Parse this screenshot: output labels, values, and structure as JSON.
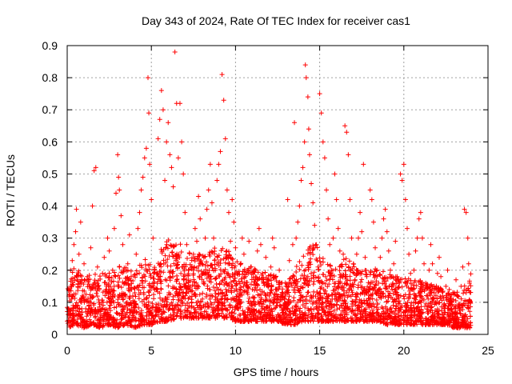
{
  "chart_data": {
    "type": "scatter",
    "title": "Day 343 of 2024, Rate Of TEC Index for receiver cas1",
    "xlabel": "GPS time / hours",
    "ylabel": "ROTI / TECUs",
    "xlim": [
      0,
      25
    ],
    "ylim": [
      0,
      0.9
    ],
    "xticks": [
      0,
      5,
      10,
      15,
      20,
      25
    ],
    "yticks": [
      0,
      0.1,
      0.2,
      0.3,
      0.4,
      0.5,
      0.6,
      0.7,
      0.8,
      0.9
    ],
    "xtick_labels": [
      "0",
      "5",
      "10",
      "15",
      "20",
      "25"
    ],
    "ytick_labels": [
      "0",
      "0.1",
      "0.2",
      "0.3",
      "0.4",
      "0.5",
      "0.6",
      "0.7",
      "0.8",
      "0.9"
    ],
    "grid": true,
    "marker": "plus",
    "color": "#ff0000",
    "series": [
      {
        "points": [
          [
            0.05,
            0.08
          ],
          [
            0.1,
            0.14
          ],
          [
            0.15,
            0.06
          ],
          [
            0.2,
            0.2
          ],
          [
            0.25,
            0.11
          ],
          [
            0.3,
            0.23
          ],
          [
            0.35,
            0.09
          ],
          [
            0.4,
            0.28
          ],
          [
            0.5,
            0.32
          ],
          [
            0.55,
            0.39
          ],
          [
            0.6,
            0.17
          ],
          [
            0.7,
            0.25
          ],
          [
            0.8,
            0.35
          ],
          [
            0.9,
            0.12
          ],
          [
            1.0,
            0.22
          ],
          [
            1.1,
            0.08
          ],
          [
            1.2,
            0.18
          ],
          [
            1.3,
            0.15
          ],
          [
            1.4,
            0.27
          ],
          [
            1.5,
            0.4
          ],
          [
            1.6,
            0.51
          ],
          [
            1.7,
            0.52
          ],
          [
            1.8,
            0.21
          ],
          [
            1.9,
            0.1
          ],
          [
            2.0,
            0.06
          ],
          [
            2.1,
            0.19
          ],
          [
            2.2,
            0.24
          ],
          [
            2.3,
            0.14
          ],
          [
            2.4,
            0.3
          ],
          [
            2.5,
            0.26
          ],
          [
            2.6,
            0.11
          ],
          [
            2.7,
            0.2
          ],
          [
            2.8,
            0.33
          ],
          [
            2.9,
            0.44
          ],
          [
            3.0,
            0.56
          ],
          [
            3.05,
            0.49
          ],
          [
            3.1,
            0.45
          ],
          [
            3.2,
            0.37
          ],
          [
            3.3,
            0.28
          ],
          [
            3.4,
            0.16
          ],
          [
            3.5,
            0.09
          ],
          [
            3.6,
            0.22
          ],
          [
            3.7,
            0.31
          ],
          [
            3.8,
            0.18
          ],
          [
            3.9,
            0.12
          ],
          [
            4.0,
            0.07
          ],
          [
            4.1,
            0.25
          ],
          [
            4.2,
            0.33
          ],
          [
            4.3,
            0.38
          ],
          [
            4.4,
            0.45
          ],
          [
            4.5,
            0.49
          ],
          [
            4.6,
            0.55
          ],
          [
            4.7,
            0.58
          ],
          [
            4.8,
            0.8
          ],
          [
            4.85,
            0.69
          ],
          [
            4.9,
            0.53
          ],
          [
            5.0,
            0.42
          ],
          [
            5.1,
            0.3
          ],
          [
            5.2,
            0.2
          ],
          [
            5.3,
            0.14
          ],
          [
            5.4,
            0.61
          ],
          [
            5.5,
            0.67
          ],
          [
            5.6,
            0.76
          ],
          [
            5.7,
            0.7
          ],
          [
            5.8,
            0.48
          ],
          [
            5.9,
            0.6
          ],
          [
            6.0,
            0.66
          ],
          [
            6.1,
            0.56
          ],
          [
            6.2,
            0.52
          ],
          [
            6.3,
            0.46
          ],
          [
            6.4,
            0.88
          ],
          [
            6.5,
            0.72
          ],
          [
            6.6,
            0.55
          ],
          [
            6.7,
            0.72
          ],
          [
            6.8,
            0.6
          ],
          [
            6.9,
            0.5
          ],
          [
            7.0,
            0.38
          ],
          [
            7.1,
            0.28
          ],
          [
            7.2,
            0.2
          ],
          [
            7.3,
            0.14
          ],
          [
            7.4,
            0.1
          ],
          [
            7.5,
            0.25
          ],
          [
            7.6,
            0.33
          ],
          [
            7.7,
            0.29
          ],
          [
            7.8,
            0.43
          ],
          [
            7.9,
            0.36
          ],
          [
            8.0,
            0.22
          ],
          [
            8.1,
            0.16
          ],
          [
            8.2,
            0.3
          ],
          [
            8.3,
            0.39
          ],
          [
            8.4,
            0.45
          ],
          [
            8.5,
            0.53
          ],
          [
            8.6,
            0.41
          ],
          [
            8.7,
            0.3
          ],
          [
            8.8,
            0.2
          ],
          [
            8.9,
            0.48
          ],
          [
            9.0,
            0.53
          ],
          [
            9.1,
            0.57
          ],
          [
            9.2,
            0.81
          ],
          [
            9.3,
            0.73
          ],
          [
            9.4,
            0.61
          ],
          [
            9.5,
            0.45
          ],
          [
            9.6,
            0.38
          ],
          [
            9.7,
            0.29
          ],
          [
            9.8,
            0.42
          ],
          [
            9.9,
            0.35
          ],
          [
            10.0,
            0.27
          ],
          [
            10.1,
            0.19
          ],
          [
            10.2,
            0.12
          ],
          [
            10.3,
            0.22
          ],
          [
            10.4,
            0.3
          ],
          [
            10.5,
            0.25
          ],
          [
            10.6,
            0.18
          ],
          [
            10.7,
            0.15
          ],
          [
            10.8,
            0.29
          ],
          [
            10.9,
            0.21
          ],
          [
            11.0,
            0.14
          ],
          [
            11.1,
            0.1
          ],
          [
            11.2,
            0.2
          ],
          [
            11.3,
            0.26
          ],
          [
            11.4,
            0.33
          ],
          [
            11.5,
            0.28
          ],
          [
            11.6,
            0.19
          ],
          [
            11.7,
            0.13
          ],
          [
            11.8,
            0.24
          ],
          [
            11.9,
            0.17
          ],
          [
            12.0,
            0.12
          ],
          [
            12.1,
            0.21
          ],
          [
            12.2,
            0.3
          ],
          [
            12.3,
            0.27
          ],
          [
            12.4,
            0.18
          ],
          [
            12.5,
            0.1
          ],
          [
            12.6,
            0.2
          ],
          [
            12.7,
            0.16
          ],
          [
            12.8,
            0.12
          ],
          [
            12.9,
            0.08
          ],
          [
            13.0,
            0.15
          ],
          [
            13.1,
            0.42
          ],
          [
            13.2,
            0.23
          ],
          [
            13.3,
            0.16
          ],
          [
            13.4,
            0.28
          ],
          [
            13.5,
            0.66
          ],
          [
            13.6,
            0.3
          ],
          [
            13.7,
            0.35
          ],
          [
            13.8,
            0.4
          ],
          [
            13.9,
            0.48
          ],
          [
            14.0,
            0.52
          ],
          [
            14.1,
            0.6
          ],
          [
            14.15,
            0.84
          ],
          [
            14.2,
            0.8
          ],
          [
            14.3,
            0.74
          ],
          [
            14.35,
            0.64
          ],
          [
            14.4,
            0.56
          ],
          [
            14.5,
            0.47
          ],
          [
            14.6,
            0.41
          ],
          [
            14.7,
            0.34
          ],
          [
            14.8,
            0.28
          ],
          [
            14.9,
            0.21
          ],
          [
            15.0,
            0.75
          ],
          [
            15.1,
            0.69
          ],
          [
            15.2,
            0.6
          ],
          [
            15.3,
            0.55
          ],
          [
            15.4,
            0.45
          ],
          [
            15.5,
            0.36
          ],
          [
            15.6,
            0.28
          ],
          [
            15.7,
            0.2
          ],
          [
            15.8,
            0.3
          ],
          [
            15.9,
            0.5
          ],
          [
            16.0,
            0.42
          ],
          [
            16.1,
            0.33
          ],
          [
            16.2,
            0.26
          ],
          [
            16.3,
            0.18
          ],
          [
            16.4,
            0.25
          ],
          [
            16.5,
            0.65
          ],
          [
            16.6,
            0.63
          ],
          [
            16.7,
            0.56
          ],
          [
            16.8,
            0.42
          ],
          [
            16.9,
            0.3
          ],
          [
            17.0,
            0.22
          ],
          [
            17.1,
            0.17
          ],
          [
            17.2,
            0.25
          ],
          [
            17.3,
            0.3
          ],
          [
            17.4,
            0.38
          ],
          [
            17.5,
            0.32
          ],
          [
            17.6,
            0.53
          ],
          [
            17.7,
            0.24
          ],
          [
            17.8,
            0.18
          ],
          [
            17.9,
            0.14
          ],
          [
            18.0,
            0.45
          ],
          [
            18.1,
            0.42
          ],
          [
            18.2,
            0.35
          ],
          [
            18.3,
            0.27
          ],
          [
            18.4,
            0.2
          ],
          [
            18.5,
            0.16
          ],
          [
            18.6,
            0.24
          ],
          [
            18.7,
            0.3
          ],
          [
            18.8,
            0.36
          ],
          [
            18.9,
            0.39
          ],
          [
            19.0,
            0.32
          ],
          [
            19.1,
            0.26
          ],
          [
            19.2,
            0.2
          ],
          [
            19.3,
            0.14
          ],
          [
            19.4,
            0.22
          ],
          [
            19.5,
            0.29
          ],
          [
            19.6,
            0.18
          ],
          [
            19.7,
            0.12
          ],
          [
            19.8,
            0.5
          ],
          [
            19.9,
            0.48
          ],
          [
            20.0,
            0.53
          ],
          [
            20.1,
            0.42
          ],
          [
            20.2,
            0.33
          ],
          [
            20.3,
            0.25
          ],
          [
            20.4,
            0.19
          ],
          [
            20.5,
            0.14
          ],
          [
            20.6,
            0.2
          ],
          [
            20.7,
            0.26
          ],
          [
            20.8,
            0.3
          ],
          [
            20.9,
            0.36
          ],
          [
            21.0,
            0.38
          ],
          [
            21.1,
            0.3
          ],
          [
            21.2,
            0.22
          ],
          [
            21.3,
            0.16
          ],
          [
            21.4,
            0.12
          ],
          [
            21.5,
            0.2
          ],
          [
            21.6,
            0.28
          ],
          [
            21.7,
            0.22
          ],
          [
            21.8,
            0.15
          ],
          [
            21.9,
            0.1
          ],
          [
            22.0,
            0.19
          ],
          [
            22.1,
            0.24
          ],
          [
            22.2,
            0.18
          ],
          [
            22.3,
            0.12
          ],
          [
            22.4,
            0.08
          ],
          [
            22.5,
            0.15
          ],
          [
            22.6,
            0.2
          ],
          [
            22.7,
            0.14
          ],
          [
            22.8,
            0.1
          ],
          [
            22.9,
            0.07
          ],
          [
            23.0,
            0.13
          ],
          [
            23.1,
            0.17
          ],
          [
            23.2,
            0.12
          ],
          [
            23.3,
            0.08
          ],
          [
            23.4,
            0.15
          ],
          [
            23.5,
            0.21
          ],
          [
            23.6,
            0.39
          ],
          [
            23.7,
            0.38
          ],
          [
            23.8,
            0.3
          ],
          [
            23.85,
            0.22
          ],
          [
            23.9,
            0.16
          ],
          [
            23.95,
            0.1
          ]
        ]
      }
    ],
    "background_band": {
      "x": [
        0,
        0.5,
        1,
        1.5,
        2,
        2.5,
        3,
        3.5,
        4,
        4.5,
        5,
        5.5,
        6,
        6.5,
        7,
        7.5,
        8,
        8.5,
        9,
        9.5,
        10,
        10.5,
        11,
        11.5,
        12,
        12.5,
        13,
        13.5,
        14,
        14.5,
        15,
        15.5,
        16,
        16.5,
        17,
        17.5,
        18,
        18.5,
        19,
        19.5,
        20,
        20.5,
        21,
        21.5,
        22,
        22.5,
        23,
        23.5,
        24
      ],
      "low": [
        0.02,
        0.03,
        0.02,
        0.03,
        0.02,
        0.03,
        0.02,
        0.03,
        0.02,
        0.03,
        0.03,
        0.04,
        0.04,
        0.05,
        0.05,
        0.05,
        0.05,
        0.05,
        0.05,
        0.05,
        0.04,
        0.04,
        0.04,
        0.04,
        0.04,
        0.04,
        0.03,
        0.03,
        0.04,
        0.04,
        0.04,
        0.04,
        0.04,
        0.04,
        0.04,
        0.04,
        0.04,
        0.04,
        0.03,
        0.03,
        0.03,
        0.03,
        0.03,
        0.03,
        0.03,
        0.03,
        0.02,
        0.02,
        0.02
      ],
      "high": [
        0.15,
        0.22,
        0.17,
        0.2,
        0.18,
        0.2,
        0.22,
        0.22,
        0.2,
        0.24,
        0.22,
        0.26,
        0.3,
        0.3,
        0.26,
        0.25,
        0.25,
        0.26,
        0.28,
        0.27,
        0.23,
        0.22,
        0.21,
        0.2,
        0.19,
        0.18,
        0.16,
        0.2,
        0.25,
        0.3,
        0.26,
        0.22,
        0.22,
        0.24,
        0.22,
        0.2,
        0.2,
        0.21,
        0.19,
        0.18,
        0.18,
        0.17,
        0.17,
        0.16,
        0.15,
        0.14,
        0.13,
        0.14,
        0.2
      ]
    }
  }
}
